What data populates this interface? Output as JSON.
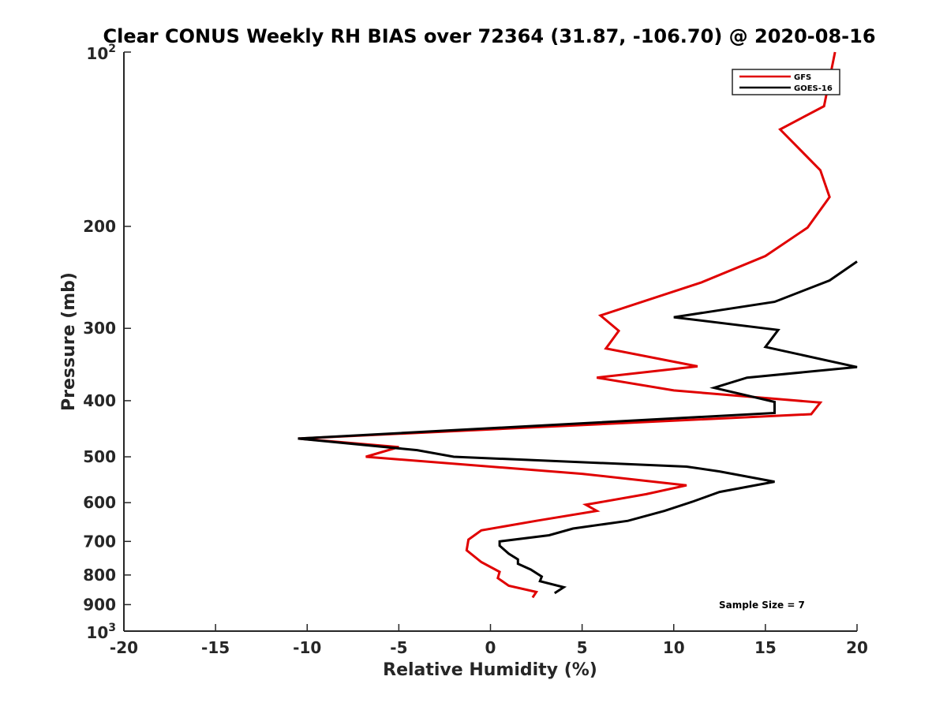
{
  "chart_data": {
    "type": "line",
    "title": "Clear CONUS Weekly RH BIAS over 72364 (31.87, -106.70) @ 2020-08-16",
    "xlabel": "Relative Humidity (%)",
    "ylabel": "Pressure (mb)",
    "xlim": [
      -20,
      20
    ],
    "ylim": [
      100,
      1000
    ],
    "y_scale": "log",
    "y_reversed": true,
    "x_ticks": [
      -20,
      -15,
      -10,
      -5,
      0,
      5,
      10,
      15,
      20
    ],
    "y_ticks": [
      {
        "value": 100,
        "base": "10",
        "exp": "2"
      },
      {
        "value": 200,
        "label": "200"
      },
      {
        "value": 300,
        "label": "300"
      },
      {
        "value": 400,
        "label": "400"
      },
      {
        "value": 500,
        "label": "500"
      },
      {
        "value": 600,
        "label": "600"
      },
      {
        "value": 700,
        "label": "700"
      },
      {
        "value": 800,
        "label": "800"
      },
      {
        "value": 900,
        "label": "900"
      },
      {
        "value": 1000,
        "base": "10",
        "exp": "3"
      }
    ],
    "grid": false,
    "legend_position": "top-right",
    "annotation": "Sample Size = 7",
    "series": [
      {
        "name": "GFS",
        "color": "#e00000",
        "points": [
          [
            18.8,
            100
          ],
          [
            18.2,
            124
          ],
          [
            15.8,
            136
          ],
          [
            18.0,
            160
          ],
          [
            18.5,
            178
          ],
          [
            17.3,
            201
          ],
          [
            15.0,
            225
          ],
          [
            11.5,
            250
          ],
          [
            6.0,
            285
          ],
          [
            7.0,
            303
          ],
          [
            6.3,
            325
          ],
          [
            11.3,
            349
          ],
          [
            5.8,
            365
          ],
          [
            10.0,
            384
          ],
          [
            18.0,
            403
          ],
          [
            17.5,
            422
          ],
          [
            -10.5,
            465
          ],
          [
            -5.0,
            481
          ],
          [
            -6.8,
            500
          ],
          [
            5.0,
            535
          ],
          [
            10.7,
            560
          ],
          [
            8.5,
            580
          ],
          [
            5.2,
            605
          ],
          [
            5.8,
            620
          ],
          [
            2.5,
            645
          ],
          [
            -0.5,
            670
          ],
          [
            -1.2,
            695
          ],
          [
            -1.3,
            725
          ],
          [
            -0.5,
            760
          ],
          [
            0.5,
            790
          ],
          [
            0.4,
            810
          ],
          [
            1.0,
            835
          ],
          [
            2.5,
            856
          ],
          [
            2.3,
            875
          ]
        ]
      },
      {
        "name": "GOES-16",
        "color": "#000000",
        "points": [
          [
            20.0,
            230
          ],
          [
            18.5,
            248
          ],
          [
            15.5,
            270
          ],
          [
            10.0,
            287
          ],
          [
            15.7,
            302
          ],
          [
            15.0,
            323
          ],
          [
            20.0,
            350
          ],
          [
            14.0,
            365
          ],
          [
            12.2,
            380
          ],
          [
            15.5,
            402
          ],
          [
            15.5,
            420
          ],
          [
            -10.5,
            465
          ],
          [
            -4.0,
            487
          ],
          [
            -2.0,
            500
          ],
          [
            10.7,
            520
          ],
          [
            12.5,
            530
          ],
          [
            15.5,
            552
          ],
          [
            12.5,
            575
          ],
          [
            11.0,
            598
          ],
          [
            9.5,
            620
          ],
          [
            7.5,
            645
          ],
          [
            4.5,
            665
          ],
          [
            3.2,
            683
          ],
          [
            0.5,
            700
          ],
          [
            0.5,
            712
          ],
          [
            1.0,
            735
          ],
          [
            1.5,
            752
          ],
          [
            1.5,
            765
          ],
          [
            2.2,
            783
          ],
          [
            2.8,
            805
          ],
          [
            2.7,
            820
          ],
          [
            4.0,
            840
          ],
          [
            3.5,
            860
          ]
        ]
      }
    ]
  }
}
